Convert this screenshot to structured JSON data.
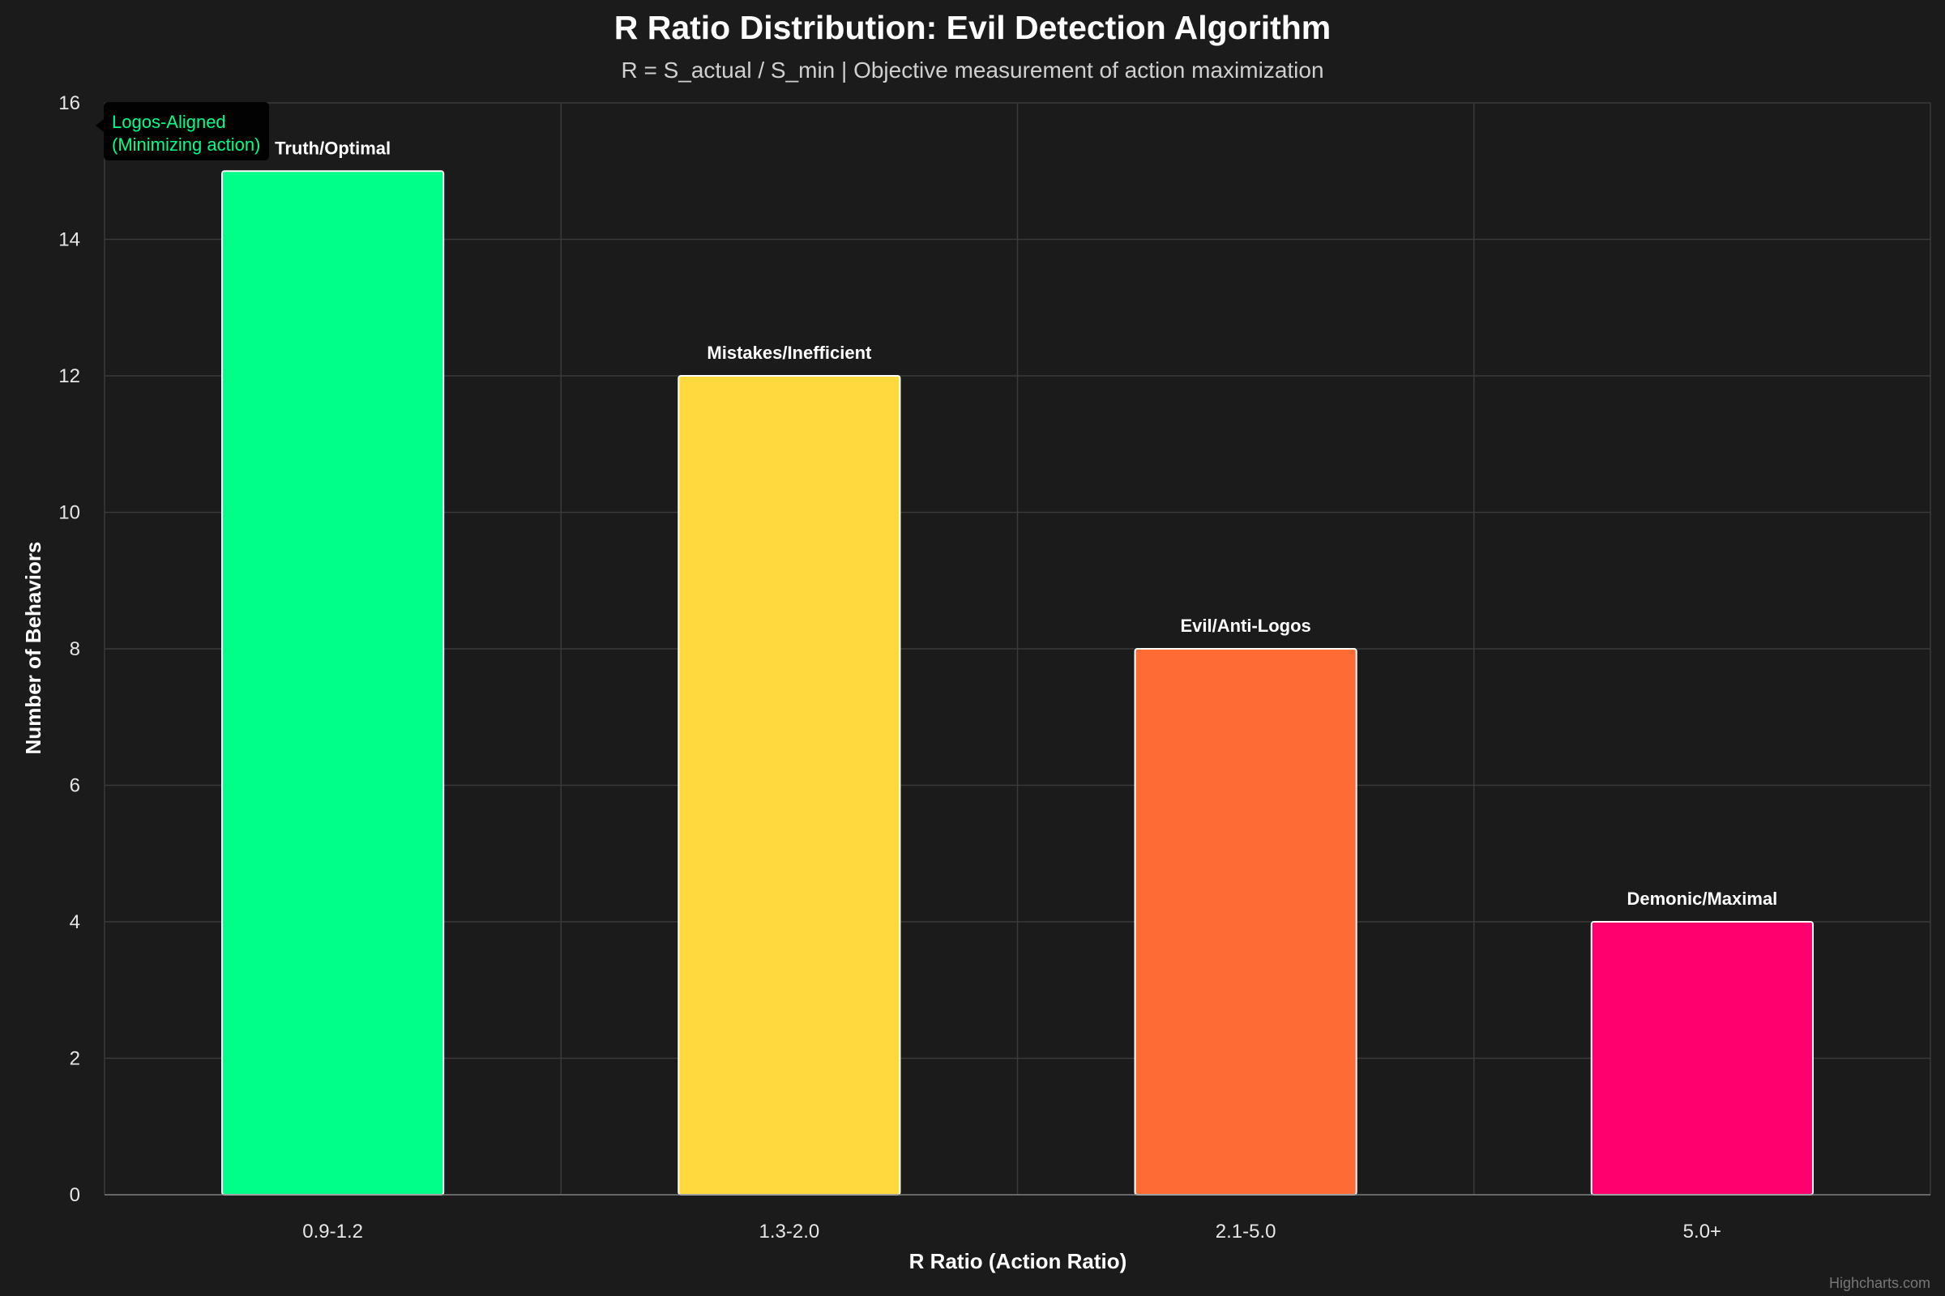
{
  "chart_data": {
    "type": "bar",
    "title": "R Ratio Distribution: Evil Detection Algorithm",
    "subtitle": "R = S_actual / S_min | Objective measurement of action maximization",
    "xlabel": "R Ratio (Action Ratio)",
    "ylabel": "Number of Behaviors",
    "categories": [
      "0.9-1.2",
      "1.3-2.0",
      "2.1-5.0",
      "5.0+"
    ],
    "values": [
      15,
      12,
      8,
      4
    ],
    "bar_labels": [
      "Truth/Optimal",
      "Mistakes/Inefficient",
      "Evil/Anti-Logos",
      "Demonic/Maximal"
    ],
    "colors": [
      "#00ff88",
      "#ffd93d",
      "#ff6b35",
      "#ff006e"
    ],
    "ylim": [
      0,
      16
    ],
    "yticks": [
      0,
      2,
      4,
      6,
      8,
      10,
      12,
      14,
      16
    ],
    "grid": true,
    "legend": "none",
    "tooltip": {
      "lines": [
        "Logos-Aligned",
        "(Minimizing action)"
      ],
      "color": "#00ff88",
      "category_index": 0
    },
    "credits": "Highcharts.com"
  }
}
